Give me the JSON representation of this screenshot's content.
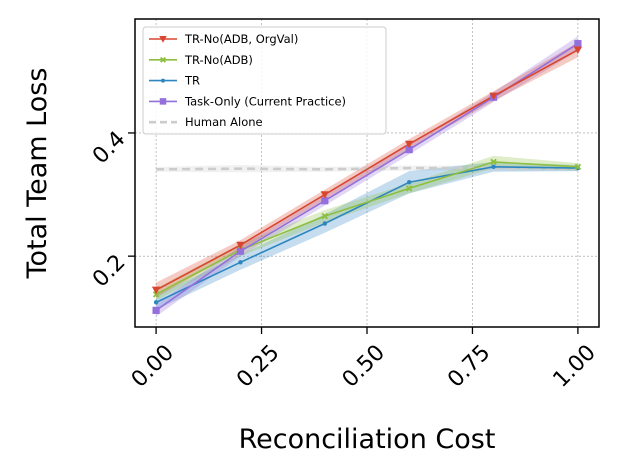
{
  "chart_data": {
    "type": "line",
    "title": "",
    "xlabel": "Reconciliation Cost",
    "ylabel": "Total Team Loss",
    "xlim": [
      -0.05,
      1.05
    ],
    "ylim": [
      0.085,
      0.585
    ],
    "xticks": [
      0.0,
      0.25,
      0.5,
      0.75,
      1.0
    ],
    "xtick_labels": [
      "0.00",
      "0.25",
      "0.50",
      "0.75",
      "1.00"
    ],
    "yticks": [
      0.2,
      0.4
    ],
    "ytick_labels": [
      "0.2",
      "0.4"
    ],
    "grid": true,
    "legend_position": "top-left",
    "series": [
      {
        "name": "TR-No(ADB, OrgVal)",
        "color": "#d9462f",
        "marker": "triangle-down",
        "x": [
          0.0,
          0.2,
          0.4,
          0.6,
          0.8,
          1.0
        ],
        "y": [
          0.145,
          0.218,
          0.3,
          0.382,
          0.46,
          0.535
        ],
        "band": [
          0.012,
          0.008,
          0.008,
          0.008,
          0.008,
          0.012
        ]
      },
      {
        "name": "TR-No(ADB)",
        "color": "#8cbf3f",
        "marker": "x",
        "x": [
          0.0,
          0.2,
          0.4,
          0.6,
          0.8,
          1.0
        ],
        "y": [
          0.138,
          0.21,
          0.265,
          0.31,
          0.353,
          0.345
        ],
        "band": [
          0.01,
          0.01,
          0.01,
          0.008,
          0.01,
          0.006
        ]
      },
      {
        "name": "TR",
        "color": "#2e86c1",
        "marker": "dot",
        "x": [
          0.0,
          0.2,
          0.4,
          0.6,
          0.8,
          1.0
        ],
        "y": [
          0.125,
          0.19,
          0.253,
          0.32,
          0.345,
          0.343
        ],
        "band": [
          0.012,
          0.012,
          0.015,
          0.018,
          0.008,
          0.005
        ]
      },
      {
        "name": "Task-Only (Current Practice)",
        "color": "#9370db",
        "marker": "square",
        "x": [
          0.0,
          0.2,
          0.4,
          0.6,
          0.8,
          1.0
        ],
        "y": [
          0.112,
          0.208,
          0.29,
          0.373,
          0.458,
          0.545
        ],
        "band": [
          0.01,
          0.008,
          0.008,
          0.008,
          0.008,
          0.012
        ]
      },
      {
        "name": "Human Alone",
        "color": "#cccccc",
        "marker": "none",
        "dashed": true,
        "x": [
          0.0,
          0.2,
          0.4,
          0.6,
          0.8,
          1.0
        ],
        "y": [
          0.341,
          0.342,
          0.341,
          0.343,
          0.343,
          0.342
        ],
        "band": [
          0.004,
          0.006,
          0.004,
          0.004,
          0.004,
          0.004
        ]
      }
    ]
  }
}
